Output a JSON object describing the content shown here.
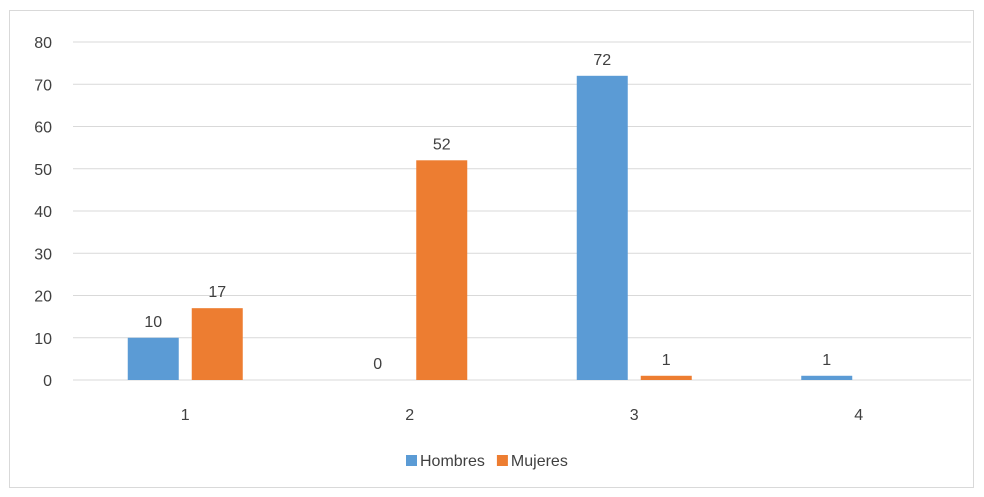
{
  "chart_data": {
    "type": "bar",
    "categories": [
      "1",
      "2",
      "3",
      "4"
    ],
    "series": [
      {
        "name": "Hombres",
        "color": "#5B9BD5",
        "values": [
          10,
          0,
          72,
          1
        ],
        "labels": [
          "10",
          "0",
          "72",
          "1"
        ]
      },
      {
        "name": "Mujeres",
        "color": "#ED7D31",
        "values": [
          17,
          52,
          1,
          0
        ],
        "labels": [
          "17",
          "52",
          "1",
          ""
        ]
      }
    ],
    "ylim": [
      0,
      80
    ],
    "yticks": [
      0,
      10,
      20,
      30,
      40,
      50,
      60,
      70,
      80
    ],
    "ytick_labels": [
      "0",
      "10",
      "20",
      "30",
      "40",
      "50",
      "60",
      "70",
      "80"
    ],
    "grid": true,
    "legend": "bottom"
  }
}
